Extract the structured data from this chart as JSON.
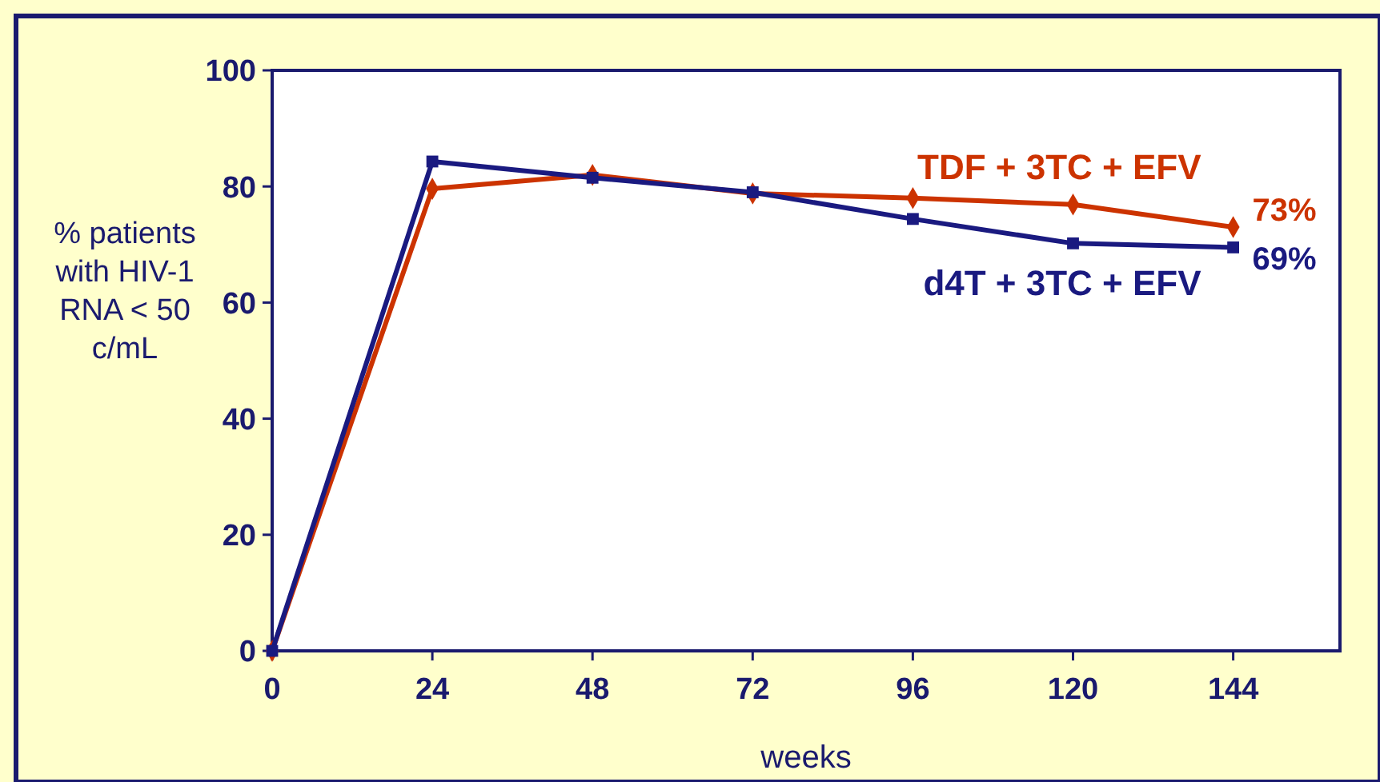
{
  "chart_data": {
    "type": "line",
    "xlabel": "weeks",
    "ylabel": "% patients with HIV-1 RNA < 50 c/mL",
    "x": [
      0,
      24,
      48,
      72,
      96,
      120,
      144
    ],
    "xlim": [
      0,
      160
    ],
    "xticks": [
      0,
      24,
      48,
      72,
      96,
      120,
      144
    ],
    "ylim": [
      0,
      100
    ],
    "yticks": [
      0,
      20,
      40,
      60,
      80,
      100
    ],
    "series": [
      {
        "name": "TDF + 3TC + EFV",
        "color": "#cc3300",
        "marker": "diamond",
        "values": [
          0,
          79.6,
          82,
          78.8,
          78,
          76.9,
          73
        ]
      },
      {
        "name": "d4T + 3TC + EFV",
        "color": "#1a1a80",
        "marker": "square",
        "values": [
          0,
          84.3,
          81.5,
          79,
          74.4,
          70.2,
          69.5
        ]
      }
    ],
    "annotations": [
      {
        "text": "73%",
        "x": 144,
        "y": 73
      },
      {
        "text": "69%",
        "x": 144,
        "y": 69.5
      }
    ],
    "grid": false
  }
}
